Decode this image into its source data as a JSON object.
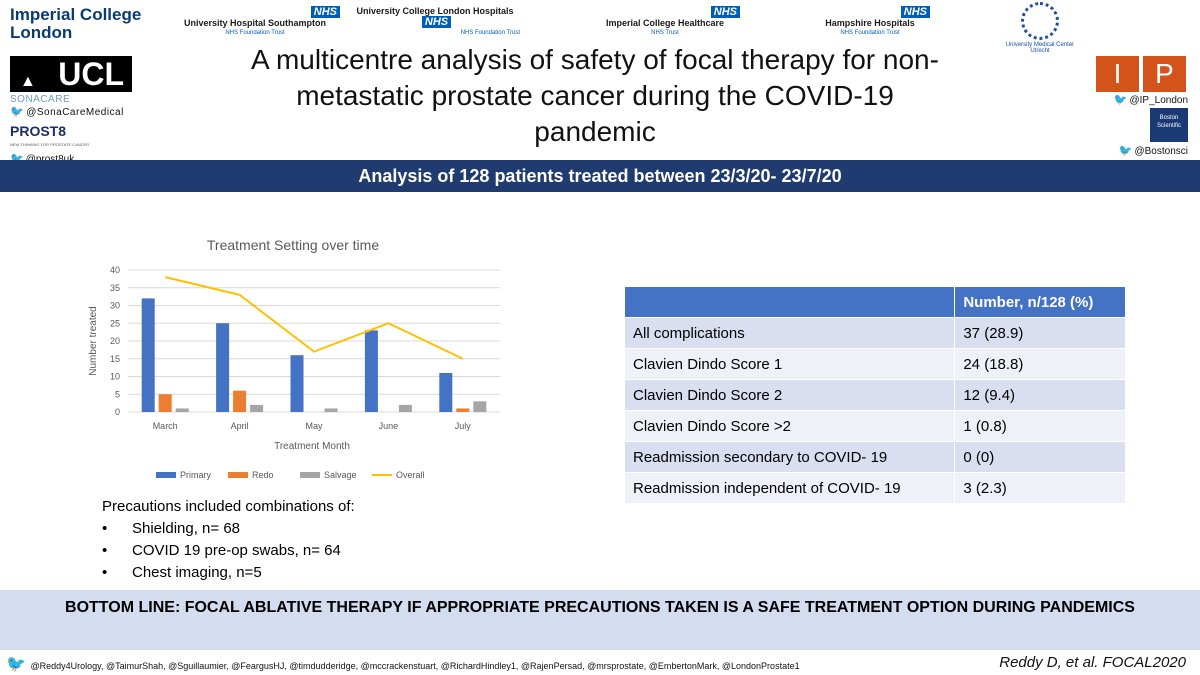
{
  "header": {
    "college": [
      "Imperial College",
      "London"
    ],
    "hospitals": [
      {
        "name": "University Hospital Southampton",
        "sub": "NHS Foundation Trust"
      },
      {
        "name": "University College London Hospitals",
        "sub": "NHS Foundation Trust"
      },
      {
        "name": "Imperial College Healthcare",
        "sub": "NHS Trust"
      },
      {
        "name": "Hampshire Hospitals",
        "sub": "NHS Foundation Trust"
      }
    ],
    "nhs_badge": "NHS",
    "umc": [
      "University Medical Center",
      "Utrecht"
    ],
    "ucl": "UCL",
    "sonacare": "SONACARE",
    "sonacare_handle": "@SonaCareMedical",
    "prost8": "PROST8",
    "prost8_tag": "NEW THINKING FOR PROSTATE CANCER",
    "prost8_handle": "@prost8uk",
    "ip_letters": [
      "I",
      "P"
    ],
    "ip_handle": "@IP_London",
    "boston": [
      "Boston",
      "Scientific"
    ],
    "boston_handle": "@Bostonsci"
  },
  "title": "A multicentre analysis of safety of focal therapy for non-metastatic prostate cancer during the COVID-19 pandemic",
  "banner": "Analysis of 128 patients treated between 23/3/20- 23/7/20",
  "chart_data": {
    "type": "bar",
    "title": "Treatment Setting over time",
    "xlabel": "Treatment Month",
    "ylabel": "Number treated",
    "categories": [
      "March",
      "April",
      "May",
      "June",
      "July"
    ],
    "ylim": [
      0,
      40
    ],
    "yticks": [
      0,
      5,
      10,
      15,
      20,
      25,
      30,
      35,
      40
    ],
    "grid": true,
    "legend_position": "bottom",
    "series": [
      {
        "name": "Primary",
        "type": "bar",
        "color": "#4472c4",
        "values": [
          32,
          25,
          16,
          23,
          11
        ]
      },
      {
        "name": "Redo",
        "type": "bar",
        "color": "#ed7d31",
        "values": [
          5,
          6,
          0,
          0,
          1
        ]
      },
      {
        "name": "Salvage",
        "type": "bar",
        "color": "#a5a5a5",
        "values": [
          1,
          2,
          1,
          2,
          3
        ]
      },
      {
        "name": "Overall",
        "type": "line",
        "color": "#ffc000",
        "values": [
          38,
          33,
          17,
          25,
          15
        ]
      }
    ]
  },
  "table": {
    "header": [
      "",
      "Number, n/128 (%)"
    ],
    "rows": [
      [
        "All complications",
        "37 (28.9)"
      ],
      [
        "Clavien Dindo Score 1",
        "24 (18.8)"
      ],
      [
        "Clavien Dindo Score 2",
        "12 (9.4)"
      ],
      [
        "Clavien Dindo Score >2",
        "1 (0.8)"
      ],
      [
        "Readmission secondary to COVID- 19",
        "0 (0)"
      ],
      [
        "Readmission independent of COVID- 19",
        "3 (2.3)"
      ]
    ]
  },
  "precautions": {
    "intro": "Precautions included combinations of:",
    "items": [
      "Shielding, n= 68",
      "COVID 19 pre-op swabs, n= 64",
      "Chest imaging, n=5"
    ]
  },
  "bottom_line": "BOTTOM LINE: FOCAL ABLATIVE THERAPY IF APPROPRIATE PRECAUTIONS TAKEN IS A SAFE TREATMENT OPTION DURING PANDEMICS",
  "footer_handles": "@Reddy4Urology, @TaimurShah, @Sguillaumier, @FeargusHJ, @timdudderidge, @mccrackenstuart, @RichardHindley1, @RajenPersad, @mrsprostate, @EmbertonMark, @LondonProstate1",
  "citation": "Reddy D, et al. FOCAL2020"
}
